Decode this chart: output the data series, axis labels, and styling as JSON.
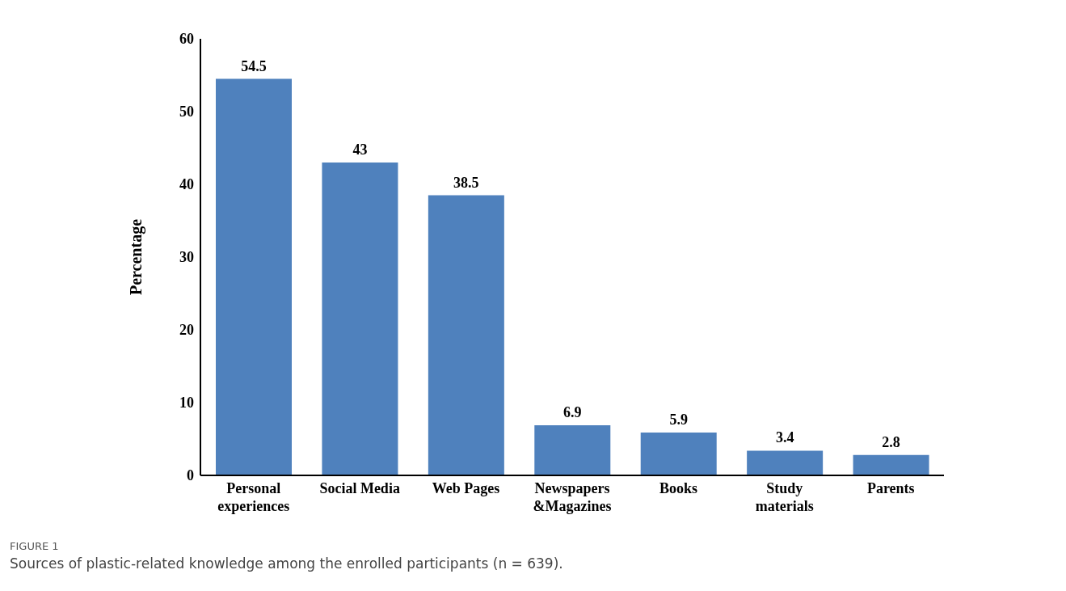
{
  "chart_data": {
    "type": "bar",
    "ylabel": "Percentage",
    "categories": [
      "Personal\nexperiences",
      "Social Media",
      "Web Pages",
      "Newspapers\n&Magazines",
      "Books",
      "Study\nmaterials",
      "Parents"
    ],
    "values": [
      54.5,
      43,
      38.5,
      6.9,
      5.9,
      3.4,
      2.8
    ],
    "color": "#4f81bd",
    "ylim": [
      0,
      60
    ],
    "yticks": [
      0,
      10,
      20,
      30,
      40,
      50,
      60
    ],
    "grid": false,
    "data_labels": true,
    "annotations": [
      "FIGURE 1",
      "Sources of plastic-related knowledge among the enrolled participants (n = 639)."
    ]
  }
}
